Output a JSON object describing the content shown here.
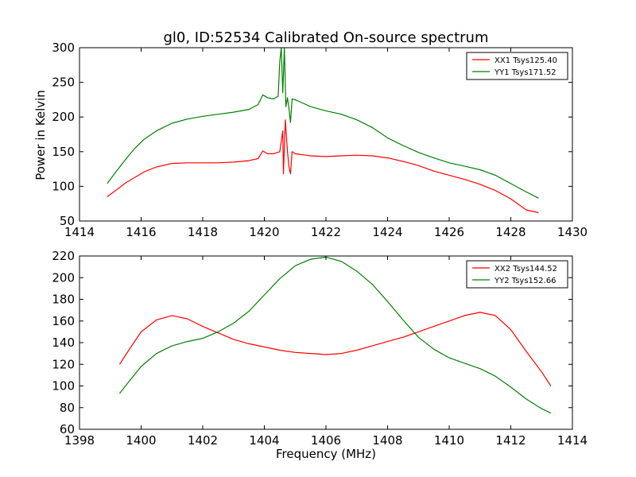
{
  "chart_data": [
    {
      "type": "line",
      "title": "gl0, ID:52534 Calibrated On-source spectrum",
      "xlabel": "",
      "ylabel": "Power in Kelvin",
      "xlim": [
        1414,
        1430
      ],
      "ylim": [
        50,
        300
      ],
      "xticks": [
        "1414",
        "1416",
        "1418",
        "1420",
        "1422",
        "1424",
        "1426",
        "1428",
        "1430"
      ],
      "yticks": [
        "50",
        "100",
        "150",
        "200",
        "250",
        "300"
      ],
      "legend_position": "top-right",
      "series": [
        {
          "name": "XX1 Tsys125.40",
          "color": "#ff0000",
          "x": [
            1414.9,
            1415.2,
            1415.5,
            1415.8,
            1416.1,
            1416.5,
            1417.0,
            1417.5,
            1418.0,
            1418.5,
            1419.0,
            1419.5,
            1419.8,
            1419.95,
            1420.1,
            1420.3,
            1420.5,
            1420.6,
            1420.62,
            1420.68,
            1420.75,
            1420.8,
            1420.85,
            1420.9,
            1421.0,
            1421.5,
            1422.0,
            1422.5,
            1423.0,
            1423.5,
            1424.0,
            1424.5,
            1425.0,
            1425.5,
            1426.0,
            1426.5,
            1427.0,
            1427.5,
            1428.0,
            1428.5,
            1428.9
          ],
          "values": [
            85,
            95,
            105,
            113,
            121,
            128,
            133,
            134,
            134,
            134,
            135,
            137,
            140,
            151,
            147,
            147,
            150,
            180,
            118,
            196,
            150,
            128,
            118,
            150,
            147,
            144,
            143,
            144,
            145,
            144,
            141,
            136,
            130,
            122,
            116,
            110,
            103,
            94,
            82,
            66,
            62
          ]
        },
        {
          "name": "YY1 Tsys171.52",
          "color": "#008000",
          "x": [
            1414.9,
            1415.2,
            1415.5,
            1415.8,
            1416.1,
            1416.5,
            1417.0,
            1417.5,
            1418.0,
            1418.5,
            1419.0,
            1419.5,
            1419.8,
            1419.95,
            1420.1,
            1420.3,
            1420.45,
            1420.5,
            1420.55,
            1420.6,
            1420.65,
            1420.7,
            1420.75,
            1420.8,
            1420.85,
            1420.9,
            1421.0,
            1421.5,
            1422.0,
            1422.5,
            1423.0,
            1423.5,
            1424.0,
            1424.5,
            1425.0,
            1425.5,
            1426.0,
            1426.5,
            1427.0,
            1427.5,
            1428.0,
            1428.5,
            1428.9
          ],
          "values": [
            104,
            122,
            139,
            155,
            168,
            180,
            191,
            197,
            201,
            204,
            207,
            211,
            218,
            232,
            228,
            226,
            230,
            280,
            300,
            235,
            300,
            215,
            228,
            212,
            192,
            226,
            225,
            215,
            209,
            204,
            196,
            185,
            170,
            159,
            149,
            141,
            134,
            129,
            124,
            116,
            104,
            92,
            83
          ]
        }
      ]
    },
    {
      "type": "line",
      "title": "",
      "xlabel": "Frequency (MHz)",
      "ylabel": "",
      "xlim": [
        1398,
        1414
      ],
      "ylim": [
        60,
        220
      ],
      "xticks": [
        "1398",
        "1400",
        "1402",
        "1404",
        "1406",
        "1408",
        "1410",
        "1412",
        "1414"
      ],
      "yticks": [
        "60",
        "80",
        "100",
        "120",
        "140",
        "160",
        "180",
        "200",
        "220"
      ],
      "legend_position": "top-right",
      "series": [
        {
          "name": "XX2 Tsys144.52",
          "color": "#ff0000",
          "x": [
            1399.3,
            1399.6,
            1400.0,
            1400.5,
            1401.0,
            1401.5,
            1402.0,
            1402.5,
            1403.0,
            1403.5,
            1404.0,
            1404.5,
            1405.0,
            1405.5,
            1406.0,
            1406.5,
            1407.0,
            1407.5,
            1408.0,
            1408.5,
            1409.0,
            1409.5,
            1410.0,
            1410.5,
            1411.0,
            1411.5,
            1412.0,
            1412.5,
            1413.0,
            1413.3
          ],
          "values": [
            120,
            133,
            150,
            161,
            165,
            162,
            155,
            149,
            143,
            139,
            136,
            133,
            131,
            130,
            129,
            130,
            133,
            137,
            141,
            145,
            150,
            155,
            160,
            165,
            168,
            165,
            152,
            132,
            113,
            100
          ]
        },
        {
          "name": "YY2 Tsys152.66",
          "color": "#008000",
          "x": [
            1399.3,
            1399.6,
            1400.0,
            1400.5,
            1401.0,
            1401.5,
            1402.0,
            1402.5,
            1403.0,
            1403.5,
            1404.0,
            1404.5,
            1405.0,
            1405.5,
            1406.0,
            1406.5,
            1407.0,
            1407.5,
            1408.0,
            1408.5,
            1409.0,
            1409.5,
            1410.0,
            1410.5,
            1411.0,
            1411.5,
            1412.0,
            1412.5,
            1413.0,
            1413.3
          ],
          "values": [
            93,
            104,
            118,
            130,
            137,
            141,
            144,
            150,
            158,
            169,
            184,
            199,
            211,
            217,
            219,
            215,
            206,
            194,
            178,
            161,
            145,
            134,
            126,
            121,
            116,
            109,
            99,
            88,
            79,
            75
          ]
        }
      ]
    }
  ]
}
